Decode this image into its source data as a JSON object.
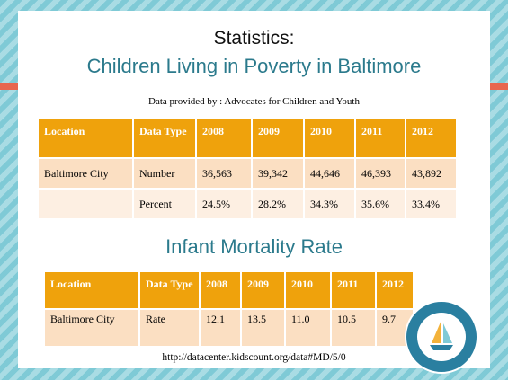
{
  "header": {
    "title": "Statistics:",
    "subtitle": "Children Living in Poverty in Baltimore"
  },
  "source_note": "Data provided by : Advocates for Children and Youth",
  "poverty_table": {
    "columns": [
      "Location",
      "Data Type",
      "2008",
      "2009",
      "2010",
      "2011",
      "2012"
    ],
    "rows": [
      [
        "Baltimore City",
        "Number",
        "36,563",
        "39,342",
        "44,646",
        "46,393",
        "43,892"
      ],
      [
        "",
        "Percent",
        "24.5%",
        "28.2%",
        "34.3%",
        "35.6%",
        "33.4%"
      ]
    ]
  },
  "mortality_heading": "Infant Mortality Rate",
  "mortality_table": {
    "columns": [
      "Location",
      "Data Type",
      "2008",
      "2009",
      "2010",
      "2011",
      "2012"
    ],
    "rows": [
      [
        "Baltimore City",
        "Rate",
        "12.1",
        "13.5",
        "11.0",
        "10.5",
        "9.7"
      ]
    ]
  },
  "footer_url": "http://datacenter.kidscount.org/data#MD/5/0"
}
